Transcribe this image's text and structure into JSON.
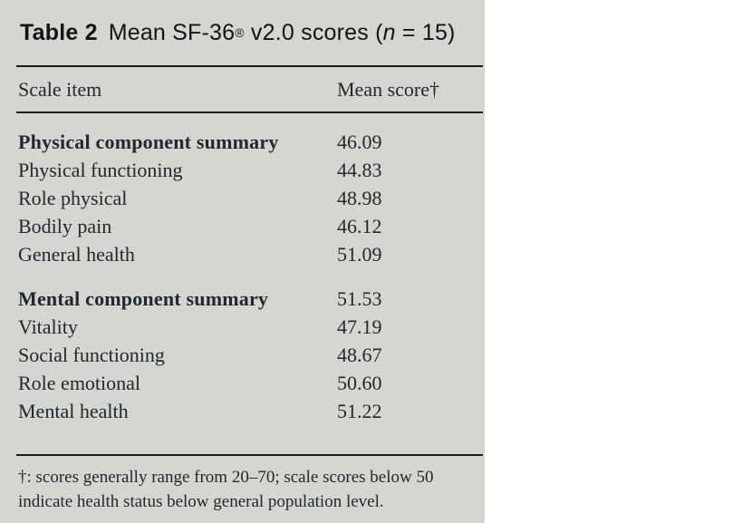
{
  "title": {
    "bold": "Table 2",
    "pre_reg": "Mean SF-36",
    "reg_mark": "®",
    "post_reg": " v2.0 scores (",
    "n_italic": "n",
    "post_n": " = 15)"
  },
  "header": {
    "scale_item": "Scale item",
    "mean_score": "Mean score†"
  },
  "rows": [
    {
      "label": "Physical component summary",
      "value": "46.09"
    },
    {
      "label": "Physical functioning",
      "value": "44.83"
    },
    {
      "label": "Role physical",
      "value": "48.98"
    },
    {
      "label": "Bodily pain",
      "value": "46.12"
    },
    {
      "label": "General health",
      "value": "51.09"
    },
    {
      "label": "Mental component summary",
      "value": "51.53"
    },
    {
      "label": "Vitality",
      "value": "47.19"
    },
    {
      "label": "Social functioning",
      "value": "48.67"
    },
    {
      "label": "Role emotional",
      "value": "50.60"
    },
    {
      "label": "Mental health",
      "value": "51.22"
    }
  ],
  "footnote": {
    "line1": "†: scores generally range from 20–70; scale scores below 50",
    "line2": "indicate health status below general population level."
  },
  "colors": {
    "panel_bg": "#d5d6d2",
    "rule": "#1c1c1c",
    "body_text": "#23272e",
    "title_text": "#131416"
  }
}
